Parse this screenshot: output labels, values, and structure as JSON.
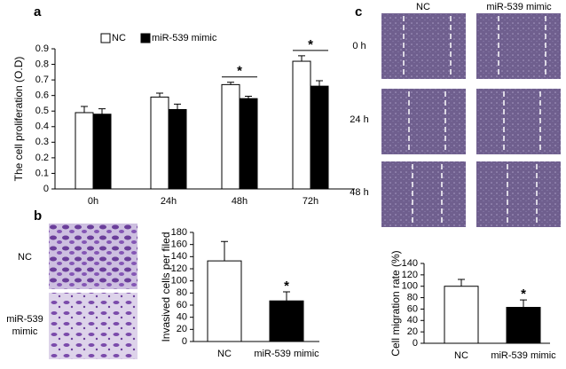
{
  "panel_labels": [
    "a",
    "b",
    "c"
  ],
  "micrographs_b": {
    "rows": [
      "NC",
      "miR-539",
      "mimic"
    ]
  },
  "micrographs_c": {
    "columns": [
      "NC",
      "miR-539 mimic"
    ],
    "rows": [
      "0 h",
      "24 h",
      "48 h"
    ]
  },
  "chart_data": [
    {
      "type": "bar",
      "y_label": "The cell proliferation (O.D)",
      "categories": [
        "0h",
        "24h",
        "48h",
        "72h"
      ],
      "series": [
        {
          "name": "NC",
          "color": "#ffffff",
          "values": [
            0.49,
            0.59,
            0.67,
            0.82
          ],
          "errors": [
            0.04,
            0.025,
            0.015,
            0.035
          ]
        },
        {
          "name": "miR-539 mimic",
          "color": "#000000",
          "values": [
            0.48,
            0.51,
            0.58,
            0.66
          ],
          "errors": [
            0.035,
            0.035,
            0.015,
            0.035
          ]
        }
      ],
      "significance": [
        null,
        null,
        "*",
        "*"
      ],
      "ylim": [
        0,
        0.9
      ],
      "yticks": [
        0,
        0.1,
        0.2,
        0.3,
        0.4,
        0.5,
        0.6,
        0.7,
        0.8,
        0.9
      ],
      "legend": "top-left"
    },
    {
      "type": "bar",
      "y_label": "Invasived cells per filed",
      "categories": [
        "NC",
        "miR-539 mimic"
      ],
      "values": [
        133,
        67
      ],
      "errors": [
        32,
        15
      ],
      "colors": [
        "#ffffff",
        "#000000"
      ],
      "significance": [
        null,
        "*"
      ],
      "ylim": [
        0,
        180
      ],
      "yticks": [
        0,
        20,
        40,
        60,
        80,
        100,
        120,
        140,
        160,
        180
      ]
    },
    {
      "type": "bar",
      "y_label": "Cell migration rate (%)",
      "categories": [
        "NC",
        "miR-539 mimic"
      ],
      "values": [
        100,
        63
      ],
      "errors": [
        12,
        13
      ],
      "colors": [
        "#ffffff",
        "#000000"
      ],
      "significance": [
        null,
        "*"
      ],
      "ylim": [
        0,
        140
      ],
      "yticks": [
        0,
        20,
        40,
        60,
        80,
        100,
        120,
        140
      ]
    }
  ]
}
